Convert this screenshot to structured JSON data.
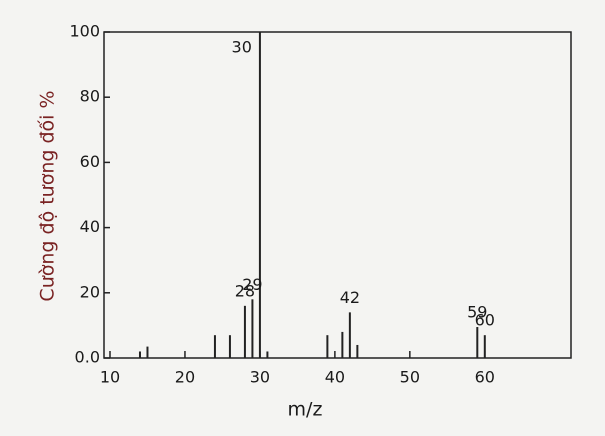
{
  "chart_data": {
    "type": "stem",
    "xlabel": "m/z",
    "ylabel": "Cường độ tương đối %",
    "x": [
      14,
      15,
      24,
      26,
      28,
      29,
      30,
      31,
      39,
      41,
      42,
      43,
      59,
      60
    ],
    "values": [
      2,
      3.5,
      7,
      7,
      16,
      18,
      100,
      2,
      7,
      8,
      14,
      4,
      9.5,
      7
    ],
    "peak_labels": [
      28,
      29,
      30,
      42,
      59,
      60
    ],
    "color": "#222222",
    "xlim": [
      9.2,
      71.5
    ],
    "xticks": [
      10,
      20,
      30,
      40,
      50,
      60
    ],
    "ylim": [
      0,
      100
    ],
    "yticks": [
      {
        "value": 0,
        "label": "0.0"
      },
      20,
      40,
      60,
      80,
      100
    ]
  }
}
